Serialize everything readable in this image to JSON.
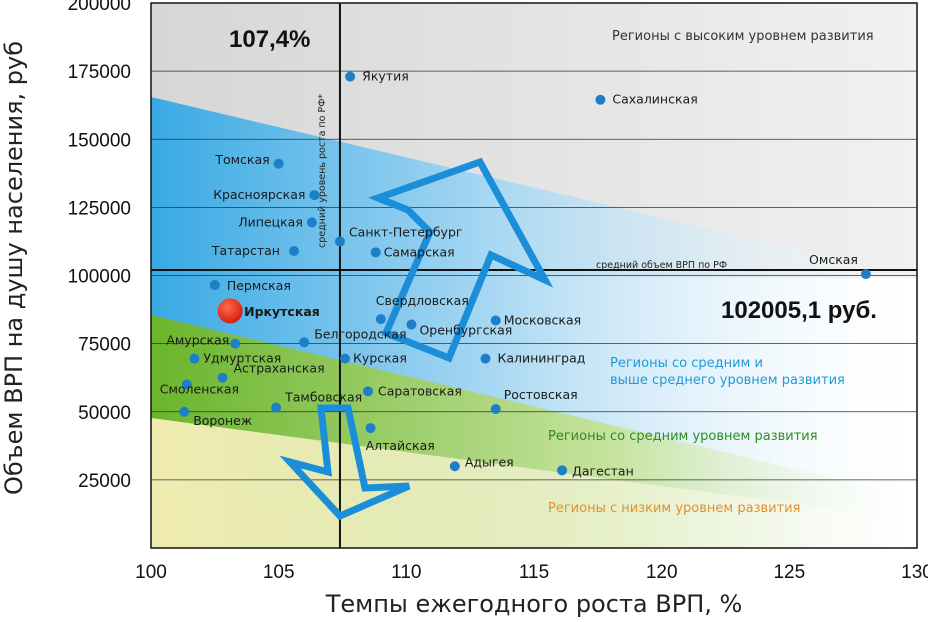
{
  "chart_data": {
    "type": "scatter",
    "title": "",
    "xlabel": "Темпы ежегодного роста ВРП, %",
    "ylabel": "Объем ВРП на душу населения, руб",
    "xlim": [
      100,
      130
    ],
    "ylim": [
      0,
      200000
    ],
    "x_ticks": [
      "100",
      "105",
      "110",
      "115",
      "120",
      "125",
      "130"
    ],
    "y_ticks": [
      "25000",
      "50000",
      "75000",
      "100000",
      "125000",
      "150000",
      "175000",
      "200000"
    ],
    "grid": "horizontal",
    "reference_lines": {
      "x": 107.4,
      "x_label": "средний уровень роста по РФ*",
      "x_value_label": "107,4%",
      "y": 102005.1,
      "y_label": "средний объем ВРП по РФ",
      "y_value_label": "102005,1 руб."
    },
    "zones": [
      {
        "label": "Регионы с высоким уровнем развития",
        "color": "#333333"
      },
      {
        "label": "Регионы со средним и выше среднего уровнем развития",
        "color": "#29a3dc"
      },
      {
        "label": "Регионы со средним уровнем развития",
        "color": "#3a9a2a"
      },
      {
        "label": "Регионы с низким уровнем развития",
        "color": "#e49a2a"
      }
    ],
    "highlight": "Иркутская",
    "points": [
      {
        "name": "Якутия",
        "x": 107.8,
        "y": 173000
      },
      {
        "name": "Сахалинская",
        "x": 117.6,
        "y": 164500
      },
      {
        "name": "Томская",
        "x": 105.0,
        "y": 141000
      },
      {
        "name": "Красноярская",
        "x": 106.4,
        "y": 129500
      },
      {
        "name": "Липецкая",
        "x": 106.3,
        "y": 119500
      },
      {
        "name": "Санкт-Петербург",
        "x": 107.4,
        "y": 112500
      },
      {
        "name": "Татарстан",
        "x": 105.6,
        "y": 109000
      },
      {
        "name": "Самарская",
        "x": 108.8,
        "y": 108500
      },
      {
        "name": "Омская",
        "x": 128.0,
        "y": 100500
      },
      {
        "name": "Пермская",
        "x": 102.5,
        "y": 96500
      },
      {
        "name": "Иркутская",
        "x": 103.1,
        "y": 87000
      },
      {
        "name": "Свердловская",
        "x": 109.0,
        "y": 84000
      },
      {
        "name": "Оренбургская",
        "x": 110.2,
        "y": 82000
      },
      {
        "name": "Московская",
        "x": 113.5,
        "y": 83500
      },
      {
        "name": "Амурская",
        "x": 103.3,
        "y": 75000
      },
      {
        "name": "Белгородская",
        "x": 106.0,
        "y": 75500
      },
      {
        "name": "Удмуртская",
        "x": 101.7,
        "y": 69500
      },
      {
        "name": "Курская",
        "x": 107.6,
        "y": 69500
      },
      {
        "name": "Калининград",
        "x": 113.1,
        "y": 69500
      },
      {
        "name": "Астраханская",
        "x": 102.8,
        "y": 62500
      },
      {
        "name": "Смоленская",
        "x": 101.4,
        "y": 60000
      },
      {
        "name": "Саратовская",
        "x": 108.5,
        "y": 57500
      },
      {
        "name": "Тамбовская",
        "x": 104.9,
        "y": 51500
      },
      {
        "name": "Воронеж",
        "x": 101.3,
        "y": 50000
      },
      {
        "name": "Ростовская",
        "x": 113.5,
        "y": 51000
      },
      {
        "name": "Алтайская",
        "x": 108.6,
        "y": 44000
      },
      {
        "name": "Адыгея",
        "x": 111.9,
        "y": 30000
      },
      {
        "name": "Дагестан",
        "x": 116.1,
        "y": 28500
      }
    ]
  }
}
